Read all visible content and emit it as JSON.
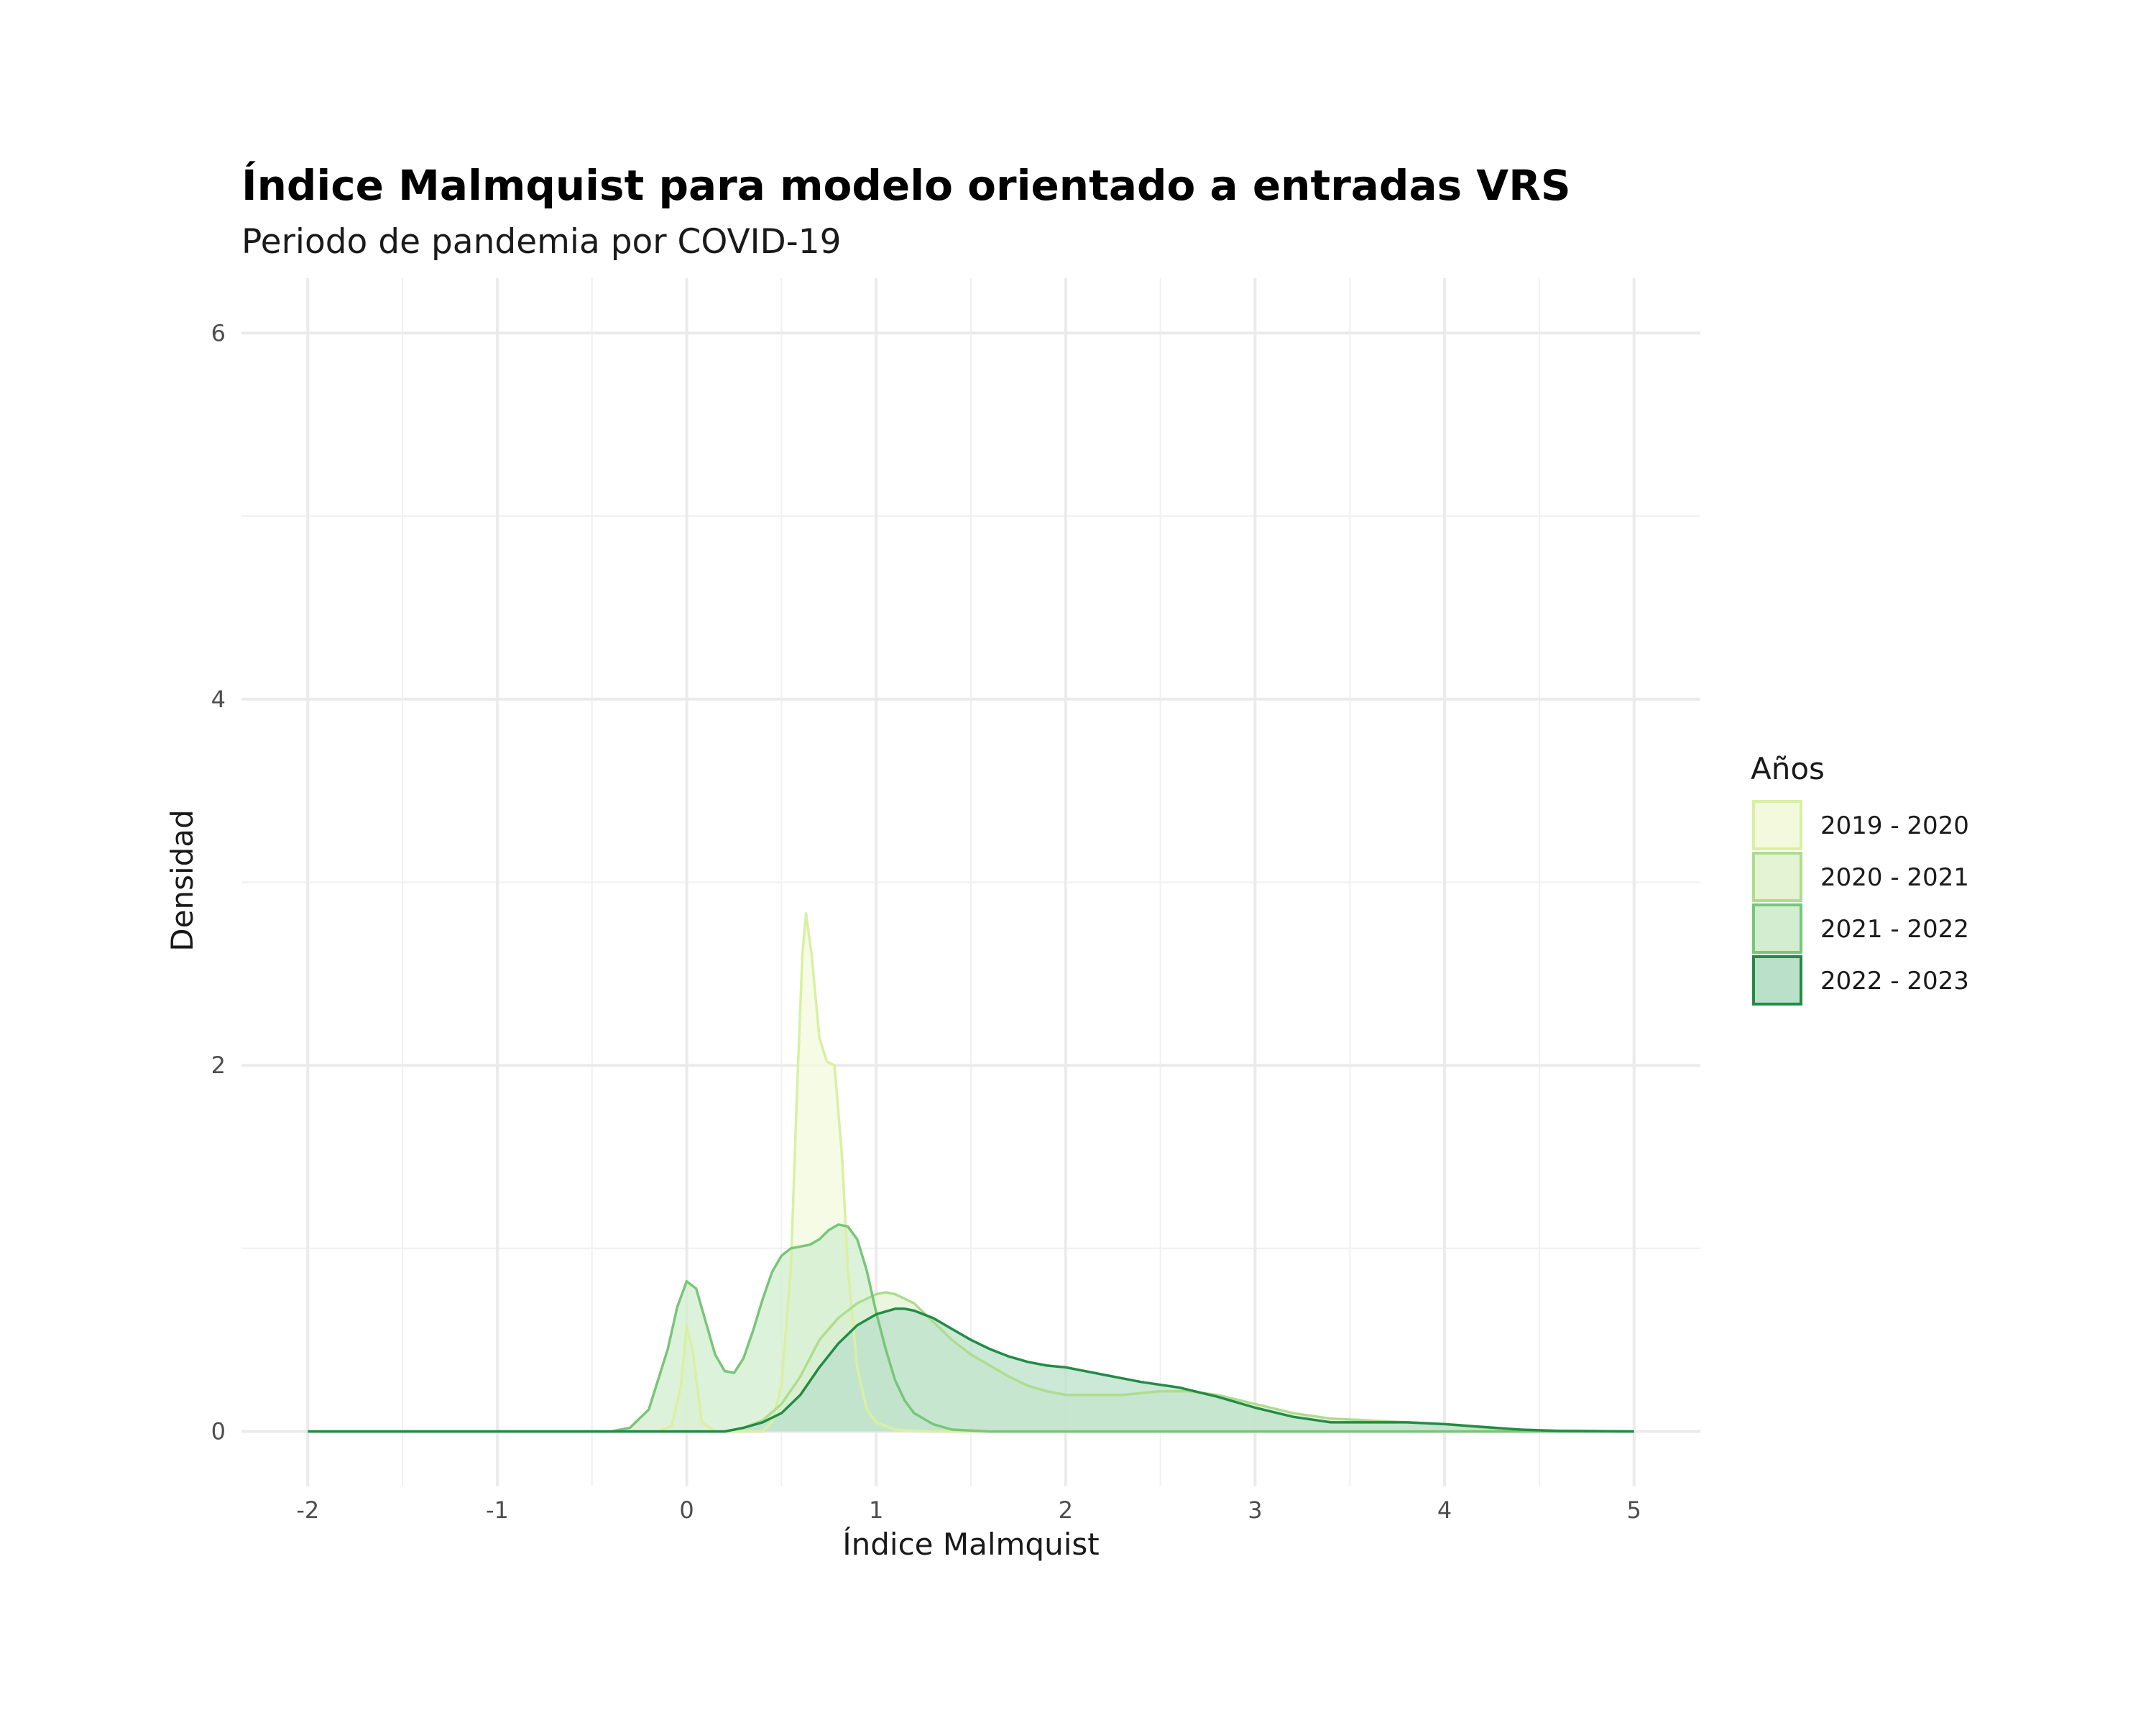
{
  "chart_data": {
    "type": "area",
    "title": "Índice Malmquist para modelo orientado a entradas VRS",
    "subtitle": "Periodo de pandemia por COVID-19",
    "xlabel": "Índice Malmquist",
    "ylabel": "Densidad",
    "xlim": [
      -2.35,
      5.35
    ],
    "ylim": [
      -0.3,
      6.3
    ],
    "x_ticks": [
      -2,
      -1,
      0,
      1,
      2,
      3,
      4,
      5
    ],
    "y_ticks": [
      0,
      2,
      4,
      6
    ],
    "x_tick_labels": [
      "-2",
      "-1",
      "0",
      "1",
      "2",
      "3",
      "4",
      "5"
    ],
    "y_tick_labels": [
      "0",
      "2",
      "4",
      "6"
    ],
    "grid": true,
    "legend": {
      "title": "Años",
      "position": "right"
    },
    "series": [
      {
        "name": "2019 - 2020",
        "color": "#d9f0a3",
        "fill": "#f2f9dc",
        "points": [
          [
            -2,
            0
          ],
          [
            -0.15,
            0
          ],
          [
            -0.08,
            0.03
          ],
          [
            -0.03,
            0.25
          ],
          [
            0,
            0.58
          ],
          [
            0.03,
            0.45
          ],
          [
            0.08,
            0.05
          ],
          [
            0.15,
            0
          ],
          [
            0.4,
            0
          ],
          [
            0.45,
            0.05
          ],
          [
            0.5,
            0.25
          ],
          [
            0.55,
            0.9
          ],
          [
            0.58,
            1.8
          ],
          [
            0.61,
            2.6
          ],
          [
            0.63,
            2.83
          ],
          [
            0.66,
            2.6
          ],
          [
            0.7,
            2.15
          ],
          [
            0.74,
            2.02
          ],
          [
            0.78,
            2.0
          ],
          [
            0.82,
            1.5
          ],
          [
            0.85,
            0.9
          ],
          [
            0.9,
            0.35
          ],
          [
            0.95,
            0.12
          ],
          [
            1.0,
            0.05
          ],
          [
            1.1,
            0.01
          ],
          [
            1.3,
            0
          ],
          [
            5,
            0
          ]
        ]
      },
      {
        "name": "2020 - 2021",
        "color": "#addd8e",
        "fill": "#e4f3d3",
        "points": [
          [
            -2,
            0
          ],
          [
            0.2,
            0
          ],
          [
            0.3,
            0.02
          ],
          [
            0.4,
            0.06
          ],
          [
            0.5,
            0.15
          ],
          [
            0.6,
            0.3
          ],
          [
            0.7,
            0.5
          ],
          [
            0.8,
            0.62
          ],
          [
            0.9,
            0.7
          ],
          [
            1.0,
            0.75
          ],
          [
            1.05,
            0.76
          ],
          [
            1.1,
            0.75
          ],
          [
            1.2,
            0.7
          ],
          [
            1.3,
            0.6
          ],
          [
            1.4,
            0.5
          ],
          [
            1.5,
            0.42
          ],
          [
            1.6,
            0.36
          ],
          [
            1.7,
            0.3
          ],
          [
            1.8,
            0.25
          ],
          [
            1.9,
            0.22
          ],
          [
            2.0,
            0.2
          ],
          [
            2.1,
            0.2
          ],
          [
            2.3,
            0.2
          ],
          [
            2.5,
            0.22
          ],
          [
            2.65,
            0.22
          ],
          [
            2.8,
            0.2
          ],
          [
            3.0,
            0.15
          ],
          [
            3.2,
            0.1
          ],
          [
            3.4,
            0.07
          ],
          [
            3.6,
            0.06
          ],
          [
            3.8,
            0.05
          ],
          [
            4.0,
            0.04
          ],
          [
            4.2,
            0.02
          ],
          [
            4.5,
            0.005
          ],
          [
            5,
            0
          ]
        ]
      },
      {
        "name": "2021 - 2022",
        "color": "#78c679",
        "fill": "#d2edcf",
        "points": [
          [
            -2,
            0
          ],
          [
            -0.4,
            0
          ],
          [
            -0.3,
            0.02
          ],
          [
            -0.2,
            0.12
          ],
          [
            -0.1,
            0.45
          ],
          [
            -0.05,
            0.68
          ],
          [
            0,
            0.82
          ],
          [
            0.05,
            0.78
          ],
          [
            0.1,
            0.6
          ],
          [
            0.15,
            0.42
          ],
          [
            0.2,
            0.33
          ],
          [
            0.25,
            0.32
          ],
          [
            0.3,
            0.4
          ],
          [
            0.35,
            0.55
          ],
          [
            0.4,
            0.72
          ],
          [
            0.45,
            0.87
          ],
          [
            0.5,
            0.96
          ],
          [
            0.55,
            1.0
          ],
          [
            0.6,
            1.01
          ],
          [
            0.65,
            1.02
          ],
          [
            0.7,
            1.05
          ],
          [
            0.75,
            1.1
          ],
          [
            0.8,
            1.13
          ],
          [
            0.85,
            1.12
          ],
          [
            0.9,
            1.05
          ],
          [
            0.95,
            0.88
          ],
          [
            1.0,
            0.65
          ],
          [
            1.05,
            0.45
          ],
          [
            1.1,
            0.28
          ],
          [
            1.15,
            0.17
          ],
          [
            1.2,
            0.1
          ],
          [
            1.3,
            0.04
          ],
          [
            1.4,
            0.01
          ],
          [
            1.6,
            0
          ],
          [
            5,
            0
          ]
        ]
      },
      {
        "name": "2022 - 2023",
        "color": "#238b45",
        "fill": "#bbe0c9",
        "points": [
          [
            -2,
            0
          ],
          [
            0.2,
            0
          ],
          [
            0.3,
            0.02
          ],
          [
            0.4,
            0.05
          ],
          [
            0.5,
            0.1
          ],
          [
            0.6,
            0.2
          ],
          [
            0.7,
            0.35
          ],
          [
            0.8,
            0.48
          ],
          [
            0.9,
            0.58
          ],
          [
            1.0,
            0.64
          ],
          [
            1.1,
            0.67
          ],
          [
            1.15,
            0.67
          ],
          [
            1.2,
            0.66
          ],
          [
            1.3,
            0.62
          ],
          [
            1.4,
            0.56
          ],
          [
            1.5,
            0.5
          ],
          [
            1.6,
            0.45
          ],
          [
            1.7,
            0.41
          ],
          [
            1.8,
            0.38
          ],
          [
            1.9,
            0.36
          ],
          [
            2.0,
            0.35
          ],
          [
            2.2,
            0.31
          ],
          [
            2.4,
            0.27
          ],
          [
            2.6,
            0.24
          ],
          [
            2.8,
            0.19
          ],
          [
            3.0,
            0.13
          ],
          [
            3.2,
            0.08
          ],
          [
            3.4,
            0.05
          ],
          [
            3.6,
            0.05
          ],
          [
            3.8,
            0.05
          ],
          [
            4.0,
            0.04
          ],
          [
            4.2,
            0.025
          ],
          [
            4.4,
            0.01
          ],
          [
            4.6,
            0.003
          ],
          [
            5,
            0
          ]
        ]
      }
    ]
  }
}
